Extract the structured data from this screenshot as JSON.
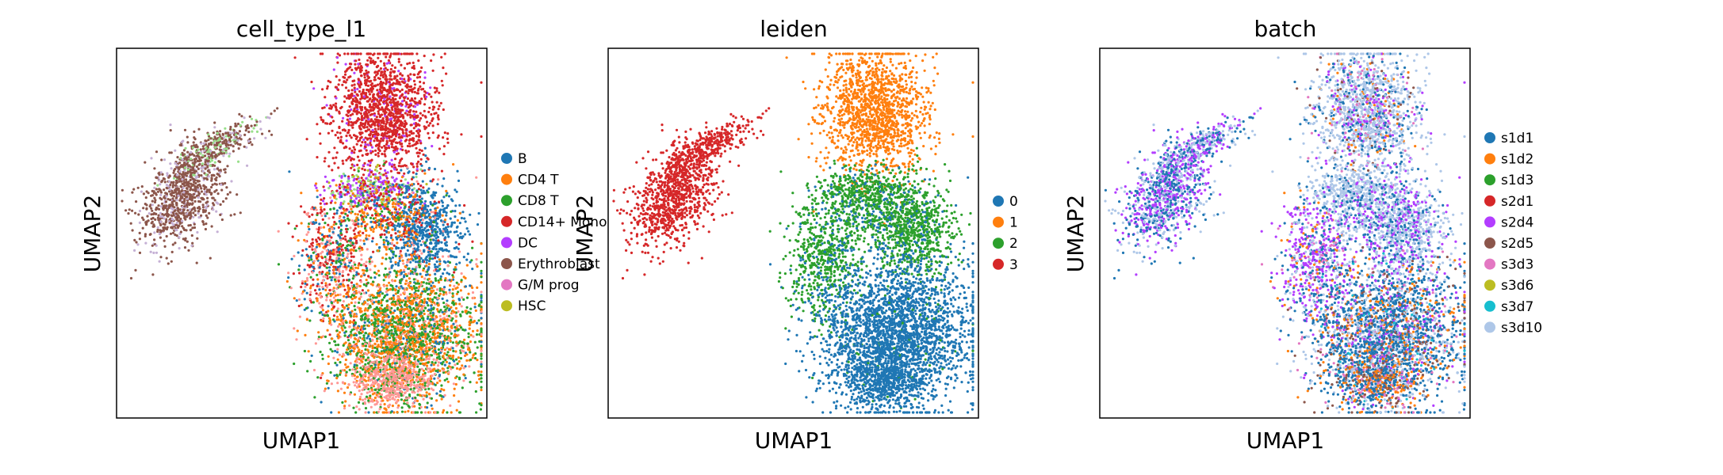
{
  "chart_data": [
    {
      "type": "scatter",
      "title": "cell_type_l1",
      "xlabel": "UMAP1",
      "ylabel": "UMAP2",
      "legend_position": "right",
      "grid": false,
      "legend": [
        {
          "label": "B",
          "color": "#1f77b4"
        },
        {
          "label": "CD4 T",
          "color": "#ff7f0e"
        },
        {
          "label": "CD8 T",
          "color": "#2ca02c"
        },
        {
          "label": "CD14+ Mono",
          "color": "#d62728"
        },
        {
          "label": "DC",
          "color": "#b33dff"
        },
        {
          "label": "Erythroblast",
          "color": "#8c564b"
        },
        {
          "label": "G/M prog",
          "color": "#e377c2"
        },
        {
          "label": "HSC",
          "color": "#bcbd22"
        }
      ],
      "extra_unlabeled_colors": [
        "#98df8a",
        "#ff9896",
        "#c5b0d5"
      ]
    },
    {
      "type": "scatter",
      "title": "leiden",
      "xlabel": "UMAP1",
      "ylabel": "UMAP2",
      "legend_position": "right",
      "grid": false,
      "legend": [
        {
          "label": "0",
          "color": "#1f77b4"
        },
        {
          "label": "1",
          "color": "#ff7f0e"
        },
        {
          "label": "2",
          "color": "#2ca02c"
        },
        {
          "label": "3",
          "color": "#d62728"
        }
      ]
    },
    {
      "type": "scatter",
      "title": "batch",
      "xlabel": "UMAP1",
      "ylabel": "UMAP2",
      "legend_position": "right",
      "grid": false,
      "legend": [
        {
          "label": "s1d1",
          "color": "#1f77b4"
        },
        {
          "label": "s1d2",
          "color": "#ff7f0e"
        },
        {
          "label": "s1d3",
          "color": "#2ca02c"
        },
        {
          "label": "s2d1",
          "color": "#d62728"
        },
        {
          "label": "s2d4",
          "color": "#b33dff"
        },
        {
          "label": "s2d5",
          "color": "#8c564b"
        },
        {
          "label": "s3d3",
          "color": "#e377c2"
        },
        {
          "label": "s3d6",
          "color": "#bcbd22"
        },
        {
          "label": "s3d7",
          "color": "#17becf"
        },
        {
          "label": "s3d10",
          "color": "#aec7e8"
        }
      ]
    }
  ]
}
